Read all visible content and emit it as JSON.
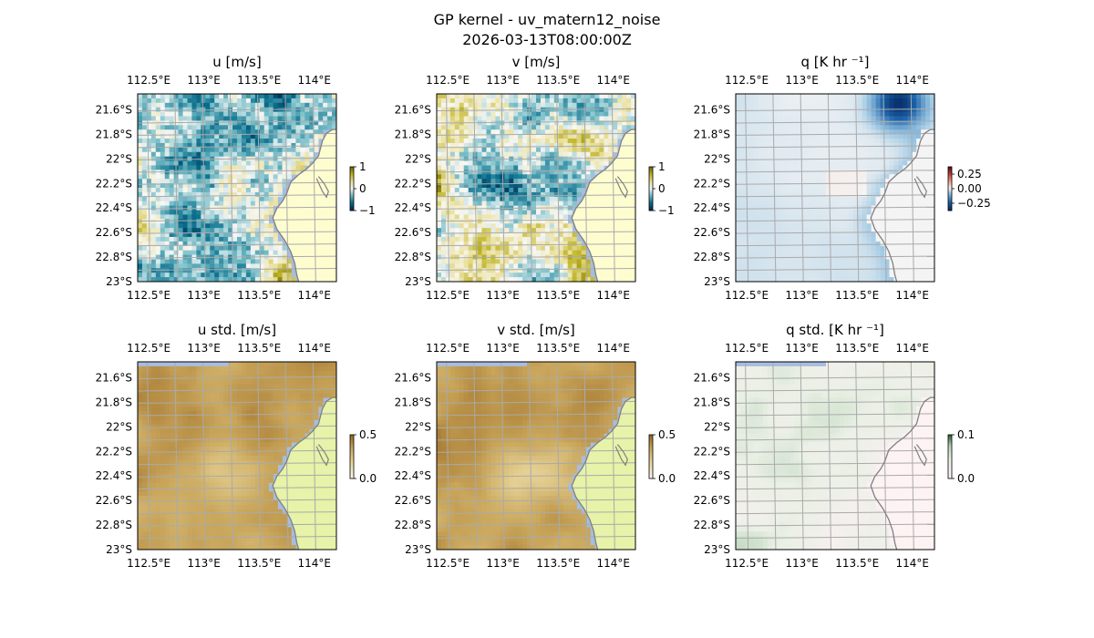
{
  "figure": {
    "title": "GP kernel - uv_matern12_noise",
    "subtitle": "2026-03-13T08:00:00Z"
  },
  "colors": {
    "ocean": "#a7bde0",
    "land": "#fefdd0",
    "land_std": "#e6f3a8",
    "coast": "#808080",
    "grid": "#aaaaaa"
  },
  "chart_data": [
    {
      "id": "u",
      "type": "heatmap",
      "title": "u [m/s]",
      "colormap": "diverging-olive-teal",
      "colorbar": {
        "ticks": [
          "1",
          "0",
          "−1"
        ],
        "range": [
          -1,
          1
        ]
      },
      "x_ticks": [
        "112.5°E",
        "113°E",
        "113.5°E",
        "114°E"
      ],
      "y_ticks": [
        "21.6°S",
        "21.8°S",
        "22°S",
        "22.2°S",
        "22.4°S",
        "22.6°S",
        "22.8°S",
        "23°S"
      ],
      "lon_range": [
        112.4,
        114.2
      ],
      "lat_range": [
        -23.0,
        -21.47
      ]
    },
    {
      "id": "v",
      "type": "heatmap",
      "title": "v [m/s]",
      "colormap": "diverging-olive-teal",
      "colorbar": {
        "ticks": [
          "1",
          "0",
          "−1"
        ],
        "range": [
          -1,
          1
        ]
      },
      "x_ticks": [
        "112.5°E",
        "113°E",
        "113.5°E",
        "114°E"
      ],
      "y_ticks": [
        "21.6°S",
        "21.8°S",
        "22°S",
        "22.2°S",
        "22.4°S",
        "22.6°S",
        "22.8°S",
        "23°S"
      ],
      "lon_range": [
        112.4,
        114.2
      ],
      "lat_range": [
        -23.0,
        -21.47
      ]
    },
    {
      "id": "q",
      "type": "heatmap",
      "title": "q [K hr ⁻¹]",
      "colormap": "diverging-red-blue",
      "colorbar": {
        "ticks": [
          "0.25",
          "0.00",
          "−0.25"
        ],
        "range": [
          -0.35,
          0.35
        ]
      },
      "x_ticks": [
        "112.5°E",
        "113°E",
        "113.5°E",
        "114°E"
      ],
      "y_ticks": [
        "21.6°S",
        "21.8°S",
        "22°S",
        "22.2°S",
        "22.4°S",
        "22.6°S",
        "22.8°S",
        "23°S"
      ],
      "lon_range": [
        112.4,
        114.2
      ],
      "lat_range": [
        -23.0,
        -21.47
      ]
    },
    {
      "id": "u_std",
      "type": "heatmap",
      "title": "u std. [m/s]",
      "colormap": "sequential-brown",
      "colorbar": {
        "ticks": [
          "0.5",
          "0.0"
        ],
        "range": [
          0,
          0.5
        ]
      },
      "x_ticks": [
        "112.5°E",
        "113°E",
        "113.5°E",
        "114°E"
      ],
      "y_ticks": [
        "21.6°S",
        "21.8°S",
        "22°S",
        "22.2°S",
        "22.4°S",
        "22.6°S",
        "22.8°S",
        "23°S"
      ],
      "lon_range": [
        112.4,
        114.2
      ],
      "lat_range": [
        -23.0,
        -21.47
      ]
    },
    {
      "id": "v_std",
      "type": "heatmap",
      "title": "v std. [m/s]",
      "colormap": "sequential-brown",
      "colorbar": {
        "ticks": [
          "0.5",
          "0.0"
        ],
        "range": [
          0,
          0.5
        ]
      },
      "x_ticks": [
        "112.5°E",
        "113°E",
        "113.5°E",
        "114°E"
      ],
      "y_ticks": [
        "21.6°S",
        "21.8°S",
        "22°S",
        "22.2°S",
        "22.4°S",
        "22.6°S",
        "22.8°S",
        "23°S"
      ],
      "lon_range": [
        112.4,
        114.2
      ],
      "lat_range": [
        -23.0,
        -21.47
      ]
    },
    {
      "id": "q_std",
      "type": "heatmap",
      "title": "q std. [K hr ⁻¹]",
      "colormap": "sequential-pink-green",
      "colorbar": {
        "ticks": [
          "0.1",
          "0.0"
        ],
        "range": [
          0,
          0.1
        ]
      },
      "x_ticks": [
        "112.5°E",
        "113°E",
        "113.5°E",
        "114°E"
      ],
      "y_ticks": [
        "21.6°S",
        "21.8°S",
        "22°S",
        "22.2°S",
        "22.4°S",
        "22.6°S",
        "22.8°S",
        "23°S"
      ],
      "lon_range": [
        112.4,
        114.2
      ],
      "lat_range": [
        -23.0,
        -21.47
      ]
    }
  ]
}
